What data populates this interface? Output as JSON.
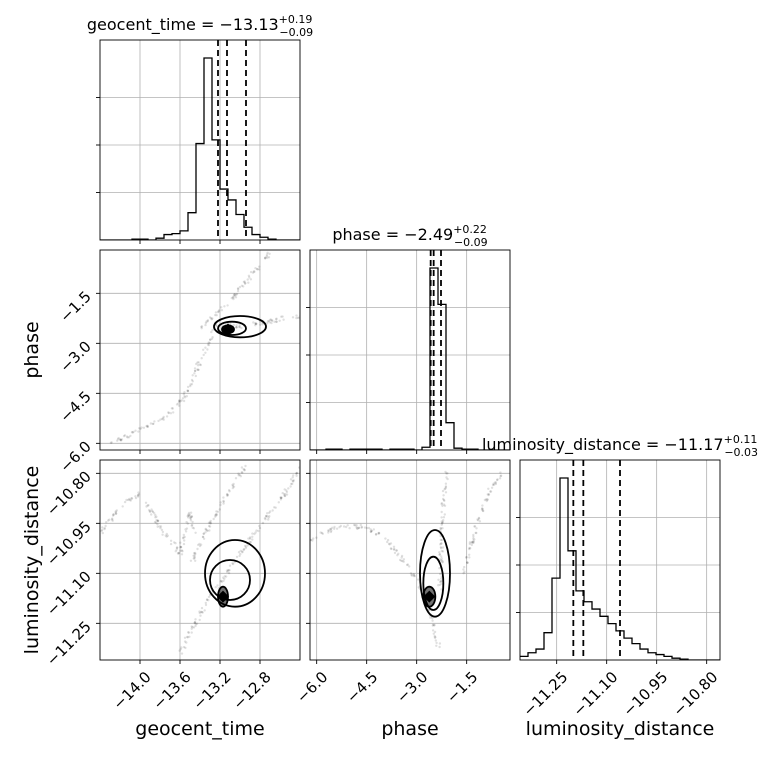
{
  "chart_data": {
    "type": "corner",
    "parameters": [
      {
        "name": "geocent_time",
        "label": "geocent_time",
        "title_prefix": "geocent_time = ",
        "median": "−13.13",
        "plus": "+0.19",
        "minus": "−0.09",
        "quantiles": [
          -13.22,
          -13.13,
          -12.94
        ],
        "range": [
          -14.4,
          -12.4
        ],
        "ticks": [
          -14.0,
          -13.6,
          -13.2,
          -12.8
        ],
        "tick_labels": [
          "−14.0",
          "−13.6",
          "−13.2",
          "−12.8"
        ],
        "hist": {
          "edges_start": -14.4,
          "bin_width": 0.08,
          "heights": [
            0.0,
            0.0,
            0.0,
            0.0,
            0.005,
            0.005,
            0.0,
            0.01,
            0.03,
            0.035,
            0.05,
            0.15,
            0.53,
            1.0,
            0.55,
            0.28,
            0.22,
            0.14,
            0.07,
            0.03,
            0.015,
            0.005,
            0.0,
            0.0,
            0.0
          ]
        }
      },
      {
        "name": "phase",
        "label": "phase",
        "title_prefix": "phase = ",
        "median": "−2.49",
        "plus": "+0.22",
        "minus": "−0.09",
        "quantiles": [
          -2.58,
          -2.49,
          -2.27
        ],
        "range": [
          -6.2,
          -0.2
        ],
        "ticks": [
          -6.0,
          -4.5,
          -3.0,
          -1.5
        ],
        "tick_labels": [
          "−6.0",
          "−4.5",
          "−3.0",
          "−1.5"
        ],
        "hist": {
          "edges_start": -6.2,
          "bin_width": 0.24,
          "heights": [
            0.0,
            0.0,
            0.005,
            0.005,
            0.0,
            0.005,
            0.005,
            0.005,
            0.005,
            0.0,
            0.005,
            0.005,
            0.005,
            0.0,
            0.015,
            1.0,
            0.8,
            0.15,
            0.01,
            0.005,
            0.005,
            0.0,
            0.0,
            0.0,
            0.0
          ]
        }
      },
      {
        "name": "luminosity_distance",
        "label": "luminosity_distance",
        "title_prefix": "luminosity_distance = ",
        "median": "−11.17",
        "plus": "+0.11",
        "minus": "−0.03",
        "quantiles": [
          -11.2,
          -11.17,
          -11.06
        ],
        "range": [
          -11.36,
          -10.76
        ],
        "ticks": [
          -11.25,
          -11.1,
          -10.95,
          -10.8
        ],
        "tick_labels": [
          "−11.25",
          "−11.10",
          "−10.95",
          "−10.80"
        ],
        "hist": {
          "edges_start": -11.36,
          "bin_width": 0.024,
          "heights": [
            0.02,
            0.04,
            0.06,
            0.15,
            0.45,
            1.0,
            0.6,
            0.38,
            0.32,
            0.28,
            0.24,
            0.2,
            0.16,
            0.12,
            0.09,
            0.06,
            0.04,
            0.03,
            0.02,
            0.01,
            0.005,
            0.0,
            0.0,
            0.0,
            0.0
          ]
        }
      }
    ],
    "grid": true,
    "scatter_pairs": [
      {
        "x_param": 0,
        "y_param": 1,
        "tracks": [
          [
            [
              -14.3,
              -6.0
            ],
            [
              -14.0,
              -5.6
            ],
            [
              -13.75,
              -5.2
            ],
            [
              -13.55,
              -4.6
            ],
            [
              -13.45,
              -3.9
            ],
            [
              -13.35,
              -3.2
            ],
            [
              -13.28,
              -2.7
            ],
            [
              -13.22,
              -2.4
            ]
          ],
          [
            [
              -13.2,
              -2.45
            ],
            [
              -13.0,
              -2.5
            ],
            [
              -12.7,
              -2.35
            ],
            [
              -12.5,
              -2.2
            ],
            [
              -12.4,
              -2.2
            ]
          ],
          [
            [
              -13.4,
              -2.6
            ],
            [
              -13.2,
              -2.0
            ],
            [
              -13.0,
              -1.4
            ],
            [
              -12.85,
              -0.8
            ],
            [
              -12.7,
              -0.3
            ]
          ]
        ],
        "contours": [
          {
            "cx": -13.12,
            "cy": -2.58,
            "rx": 0.06,
            "ry": 0.12
          },
          {
            "cx": -13.08,
            "cy": -2.55,
            "rx": 0.14,
            "ry": 0.2
          },
          {
            "cx": -13.0,
            "cy": -2.5,
            "rx": 0.26,
            "ry": 0.32
          }
        ]
      },
      {
        "x_param": 0,
        "y_param": 2,
        "tracks": [
          [
            [
              -13.6,
              -11.34
            ],
            [
              -13.45,
              -11.25
            ],
            [
              -13.3,
              -11.17
            ],
            [
              -13.1,
              -11.09
            ],
            [
              -12.9,
              -11.0
            ],
            [
              -12.7,
              -10.92
            ],
            [
              -12.55,
              -10.86
            ],
            [
              -12.4,
              -10.78
            ]
          ],
          [
            [
              -14.4,
              -10.98
            ],
            [
              -14.2,
              -10.9
            ],
            [
              -14.0,
              -10.86
            ],
            [
              -13.8,
              -10.96
            ],
            [
              -13.6,
              -11.04
            ],
            [
              -13.5,
              -10.92
            ],
            [
              -13.45,
              -10.98
            ]
          ],
          [
            [
              -13.5,
              -11.08
            ],
            [
              -13.3,
              -10.95
            ],
            [
              -13.1,
              -10.85
            ],
            [
              -12.95,
              -10.78
            ]
          ]
        ],
        "contours": [
          {
            "cx": -13.17,
            "cy": -11.17,
            "rx": 0.05,
            "ry": 0.03
          },
          {
            "cx": -13.1,
            "cy": -11.12,
            "rx": 0.2,
            "ry": 0.06
          },
          {
            "cx": -13.05,
            "cy": -11.1,
            "rx": 0.3,
            "ry": 0.1
          }
        ]
      },
      {
        "x_param": 1,
        "y_param": 2,
        "tracks": [
          [
            [
              -6.2,
              -11.0
            ],
            [
              -5.4,
              -10.96
            ],
            [
              -4.6,
              -10.96
            ],
            [
              -4.0,
              -10.99
            ],
            [
              -3.5,
              -11.05
            ],
            [
              -3.0,
              -11.12
            ],
            [
              -2.7,
              -11.18
            ],
            [
              -2.5,
              -11.25
            ],
            [
              -2.35,
              -11.32
            ]
          ],
          [
            [
              -2.3,
              -11.15
            ],
            [
              -2.25,
              -11.0
            ],
            [
              -2.2,
              -10.9
            ],
            [
              -2.1,
              -10.8
            ]
          ],
          [
            [
              -1.6,
              -11.1
            ],
            [
              -1.2,
              -10.95
            ],
            [
              -0.8,
              -10.85
            ],
            [
              -0.4,
              -10.8
            ]
          ]
        ],
        "contours": [
          {
            "cx": -2.62,
            "cy": -11.17,
            "rx": 0.18,
            "ry": 0.03
          },
          {
            "cx": -2.5,
            "cy": -11.13,
            "rx": 0.3,
            "ry": 0.08
          },
          {
            "cx": -2.45,
            "cy": -11.1,
            "rx": 0.45,
            "ry": 0.13
          }
        ]
      }
    ]
  }
}
